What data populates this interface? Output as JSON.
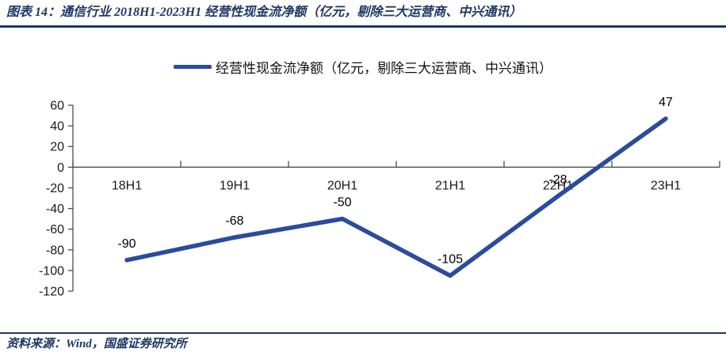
{
  "header": {
    "title": "图表 14：通信行业 2018H1-2023H1 经营性现金流净额（亿元，剔除三大运营商、中兴通讯）"
  },
  "footer": {
    "source": "资料来源：Wind，国盛证券研究所"
  },
  "chart_data": {
    "type": "line",
    "categories": [
      "18H1",
      "19H1",
      "20H1",
      "21H1",
      "22H1",
      "23H1"
    ],
    "series": [
      {
        "name": "经营性现金流净额（亿元，剔除三大运营商、中兴通讯）",
        "values": [
          -90,
          -68,
          -50,
          -105,
          -28,
          47
        ]
      }
    ],
    "data_labels": [
      -90,
      -68,
      -50,
      -105,
      -28,
      47
    ],
    "ylim": [
      -120,
      60
    ],
    "ytick_step": 20,
    "yticks": [
      60,
      40,
      20,
      0,
      -20,
      -40,
      -60,
      -80,
      -100,
      -120
    ],
    "grid": false,
    "legend_position": "top-center",
    "x_labels_position": "just below zero axis",
    "colors": {
      "line": "#2B4B9E",
      "accent_navy": "#1F3864",
      "axis": "#4d4d4d",
      "label": "#000000"
    }
  }
}
